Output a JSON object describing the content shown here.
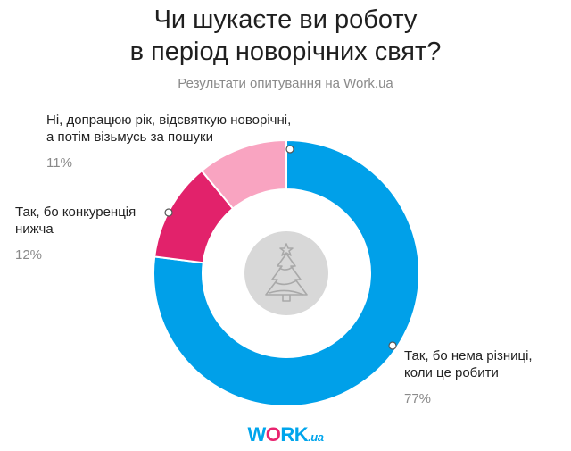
{
  "title_line1": "Чи шукаєте ви роботу",
  "title_line2": "в період новорічних свят?",
  "subtitle": "Результати опитування на Work.ua",
  "chart_data": {
    "type": "pie",
    "donut": true,
    "slices": [
      {
        "label_line1": "Так, бо нема різниці,",
        "label_line2": "коли це робити",
        "value": 77,
        "value_label": "77%",
        "color": "#00a0e9"
      },
      {
        "label_line1": "Так, бо конкуренція",
        "label_line2": "нижча",
        "value": 12,
        "value_label": "12%",
        "color": "#e2226b"
      },
      {
        "label_line1": "Ні, допрацюю рік, відсвяткую новорічні,",
        "label_line2": "а потім візьмусь за пошуки",
        "value": 11,
        "value_label": "11%",
        "color": "#f9a4c1"
      }
    ]
  },
  "logo": {
    "w": "W",
    "o": "O",
    "rk": "RK",
    "dom": ".ua"
  },
  "center_icon": "christmas-tree-icon",
  "center_circle_color": "#d8d8d8",
  "center_icon_color": "#a9a9a9",
  "marker_color": "#ffffff",
  "marker_stroke": "#555555"
}
